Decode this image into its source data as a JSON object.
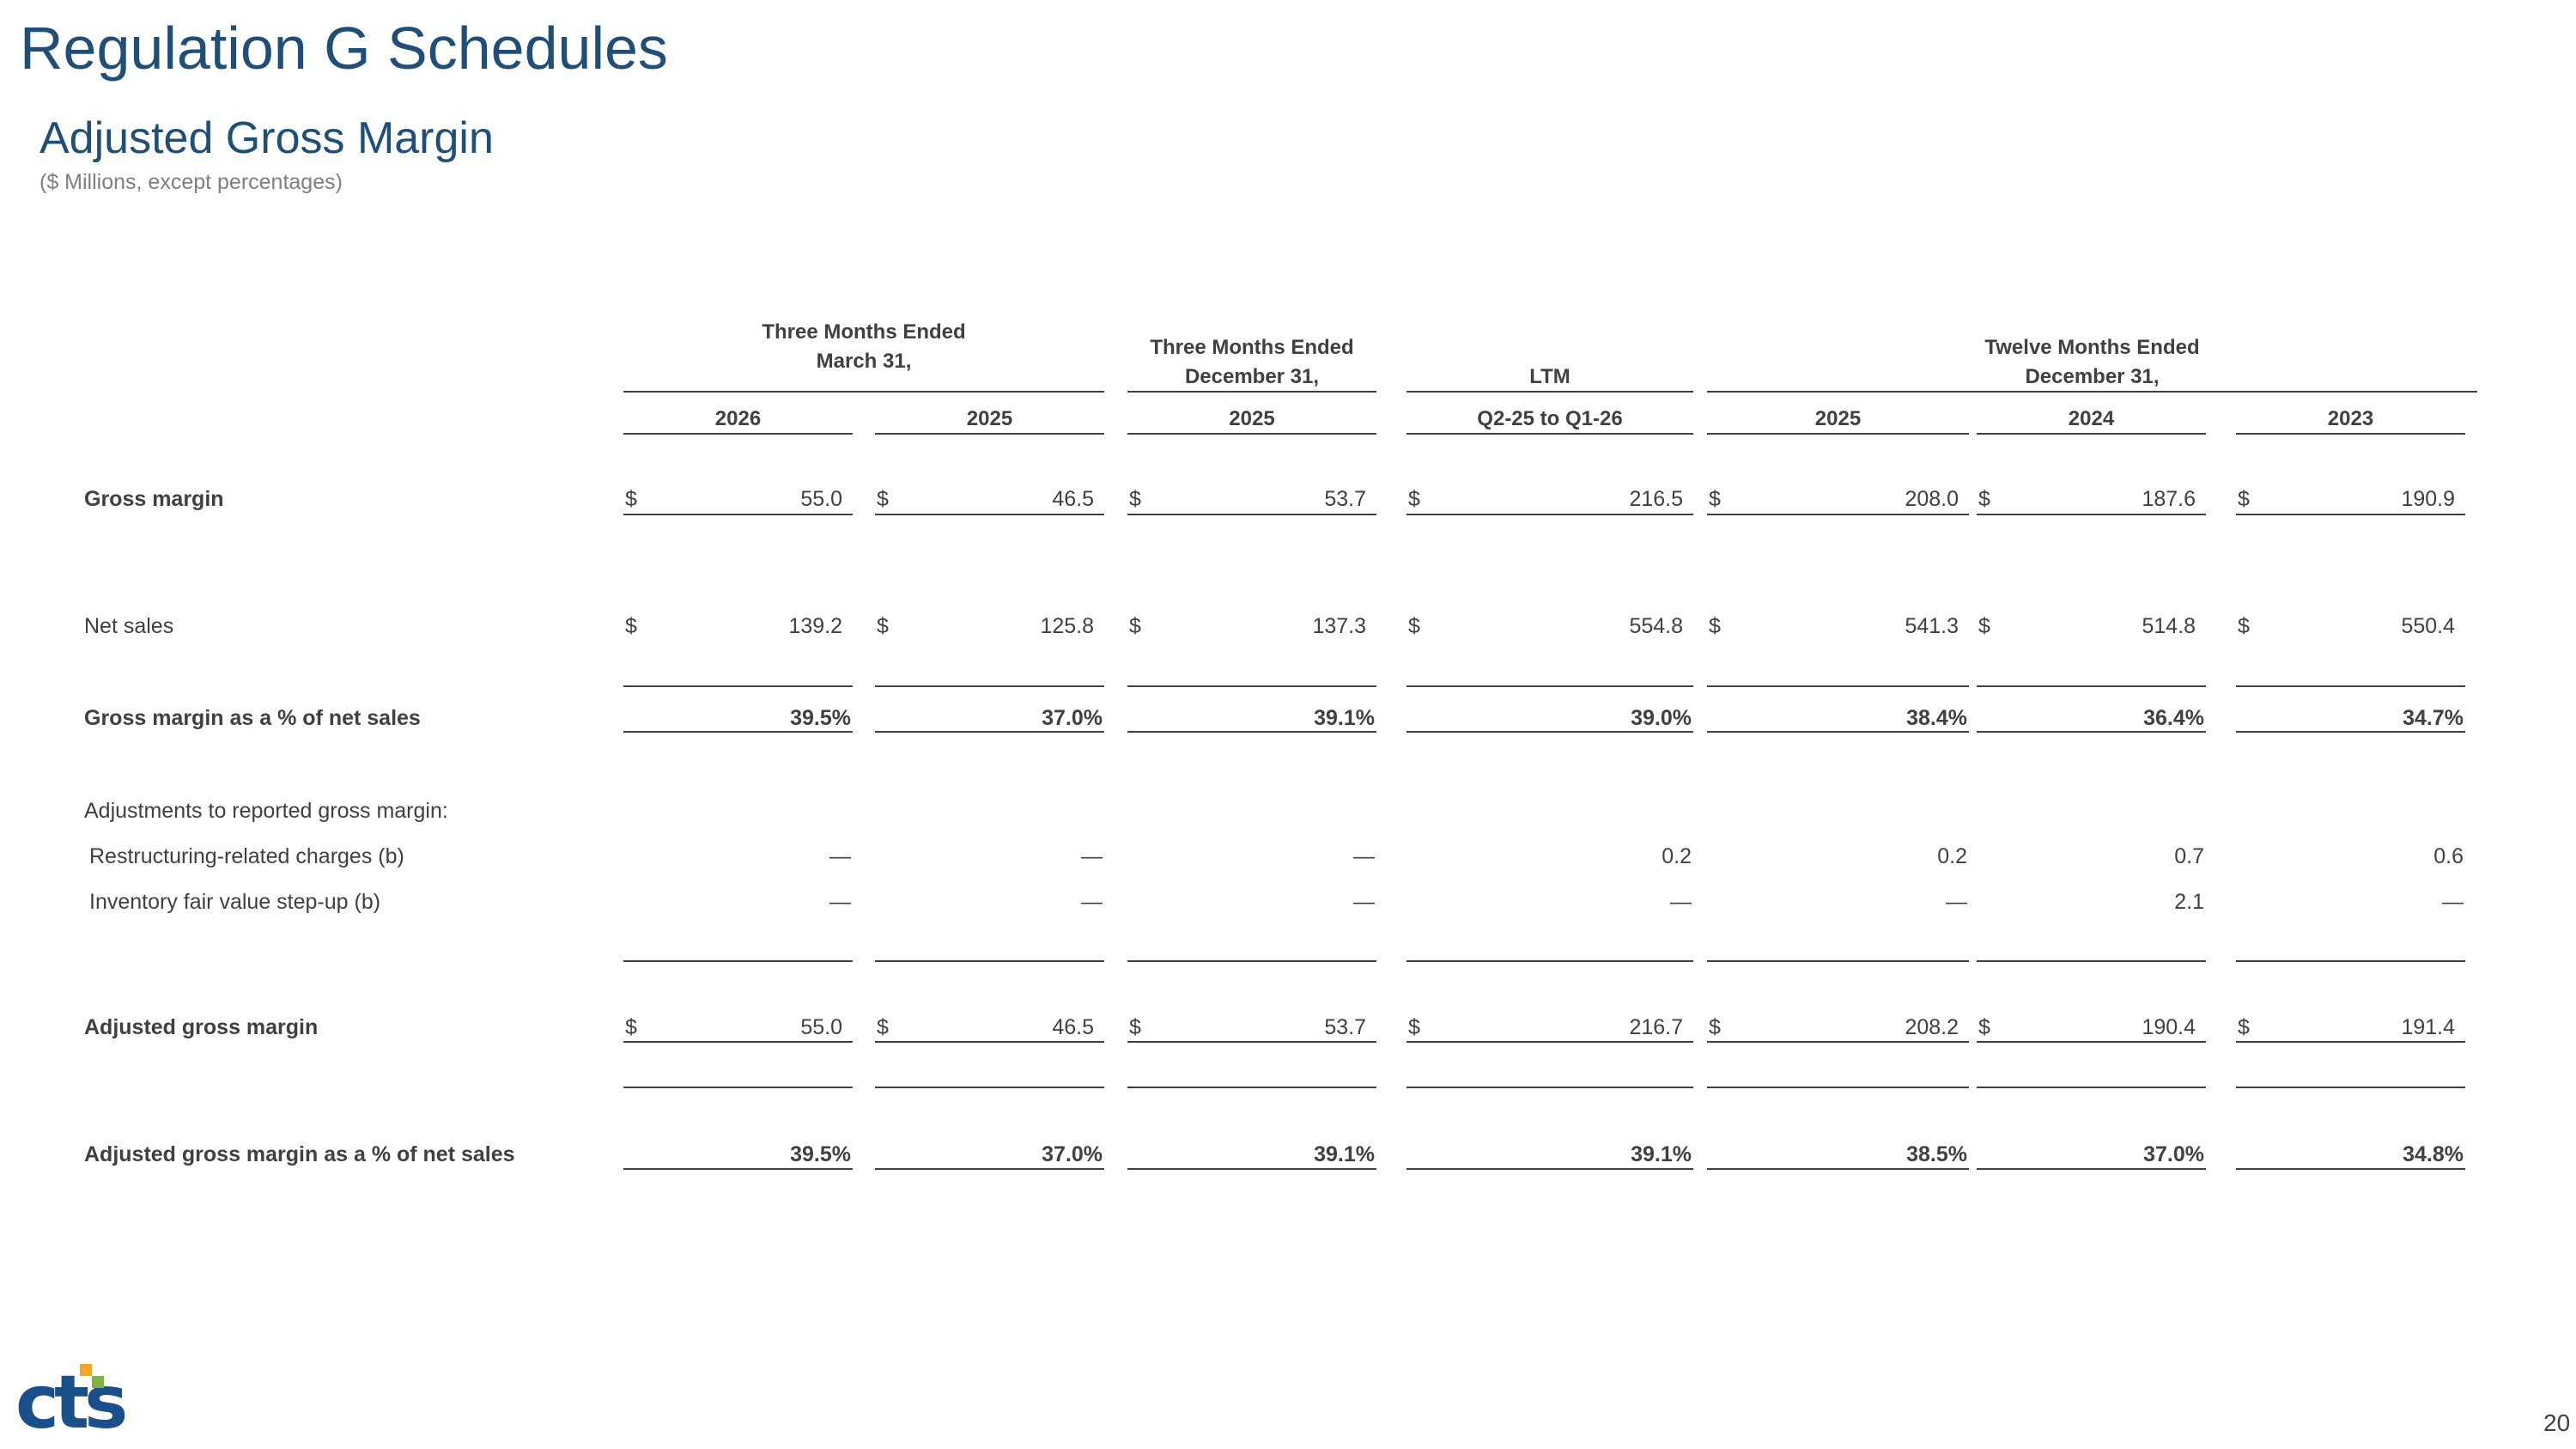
{
  "page": {
    "title": "Regulation G Schedules",
    "subtitle": "Adjusted Gross Margin",
    "units": "($ Millions, except percentages)",
    "page_number": "20"
  },
  "logo": {
    "text": "CTS",
    "colors": {
      "primary": "#1b4f8a",
      "accent_orange": "#f5a623",
      "accent_green": "#7cb342"
    }
  },
  "header": {
    "groups": [
      {
        "line1": "Three Months Ended",
        "line2": "March 31,"
      },
      {
        "line1": "Three Months Ended",
        "line2": "December 31,"
      },
      {
        "line1": "LTM",
        "line2": ""
      },
      {
        "line1": "Twelve Months Ended",
        "line2": "December 31,"
      }
    ],
    "years": [
      "2026",
      "2025",
      "2025",
      "Q2-25 to Q1-26",
      "2025",
      "2024",
      "2023"
    ]
  },
  "rows": {
    "gross_margin": {
      "label": "Gross margin",
      "values": [
        "55.0",
        "46.5",
        "53.7",
        "216.5",
        "208.0",
        "187.6",
        "190.9"
      ]
    },
    "net_sales": {
      "label": "Net sales",
      "values": [
        "139.2",
        "125.8",
        "137.3",
        "554.8",
        "541.3",
        "514.8",
        "550.4"
      ]
    },
    "gm_pct": {
      "label": "Gross margin as a % of net sales",
      "values": [
        "39.5%",
        "37.0%",
        "39.1%",
        "39.0%",
        "38.4%",
        "36.4%",
        "34.7%"
      ]
    },
    "adjustments": {
      "label": "Adjustments to reported gross margin:"
    },
    "restructuring": {
      "label": "Restructuring-related charges (b)",
      "values": [
        "—",
        "—",
        "—",
        "0.2",
        "0.2",
        "0.7",
        "0.6"
      ]
    },
    "inventory": {
      "label": "Inventory fair value step-up (b)",
      "values": [
        "—",
        "—",
        "—",
        "—",
        "—",
        "2.1",
        "—"
      ]
    },
    "adj_gm": {
      "label": "Adjusted gross margin",
      "values": [
        "55.0",
        "46.5",
        "53.7",
        "216.7",
        "208.2",
        "190.4",
        "191.4"
      ]
    },
    "adj_gm_pct": {
      "label": "Adjusted gross margin as a % of net sales",
      "values": [
        "39.5%",
        "37.0%",
        "39.1%",
        "39.1%",
        "38.5%",
        "37.0%",
        "34.8%"
      ]
    }
  },
  "currency_symbol": "$"
}
